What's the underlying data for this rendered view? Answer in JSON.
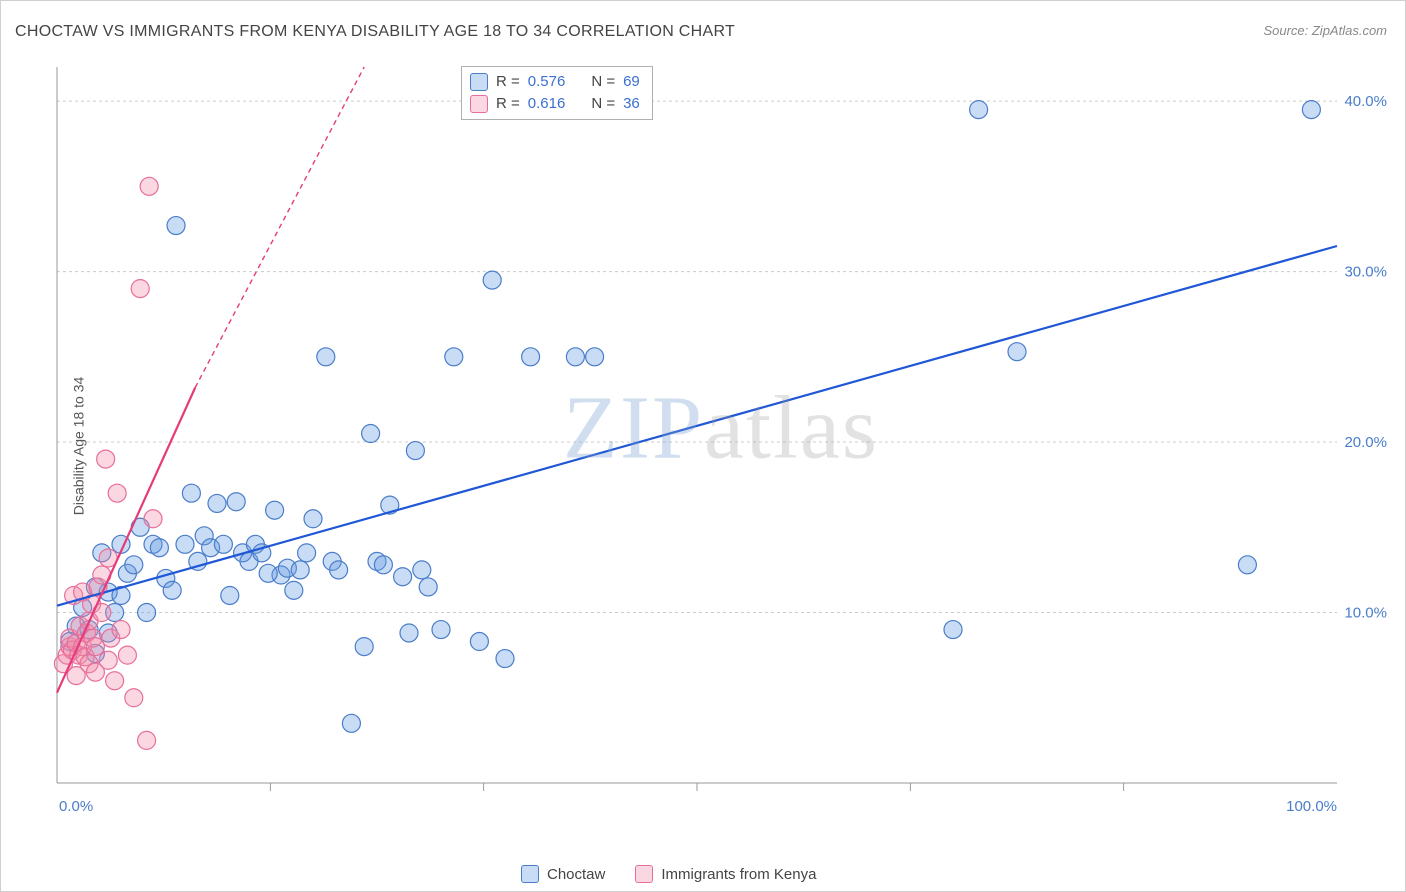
{
  "title": "CHOCTAW VS IMMIGRANTS FROM KENYA DISABILITY AGE 18 TO 34 CORRELATION CHART",
  "source": "Source: ZipAtlas.com",
  "y_axis_label": "Disability Age 18 to 34",
  "watermark": {
    "zip": "ZIP",
    "atlas": "atlas"
  },
  "chart": {
    "type": "scatter",
    "xlim": [
      0,
      100
    ],
    "ylim": [
      0,
      42
    ],
    "y_ticks": [
      10,
      20,
      30,
      40
    ],
    "y_tick_labels": [
      "10.0%",
      "20.0%",
      "30.0%",
      "40.0%"
    ],
    "x_end_labels": {
      "min": "0.0%",
      "max": "100.0%"
    },
    "x_minor_ticks": [
      16.67,
      33.33,
      50,
      66.67,
      83.33
    ],
    "background_color": "#ffffff",
    "grid_color": "#cccccc",
    "axis_color": "#999999",
    "series": [
      {
        "name": "Choctaw",
        "color_fill": "rgba(100,155,225,0.35)",
        "color_stroke": "#4a7dc9",
        "marker_radius": 9,
        "trend": {
          "x1": 0,
          "y1": 10.4,
          "x2": 100,
          "y2": 31.5,
          "stroke": "#1f57d6",
          "width": 2.2,
          "dash": "none"
        },
        "points": [
          [
            1,
            8.3
          ],
          [
            1.5,
            9.2
          ],
          [
            2,
            10.3
          ],
          [
            2.5,
            9.0
          ],
          [
            3,
            7.6
          ],
          [
            3,
            11.5
          ],
          [
            3.5,
            13.5
          ],
          [
            4,
            8.8
          ],
          [
            4,
            11.2
          ],
          [
            4.5,
            10.0
          ],
          [
            5,
            14.0
          ],
          [
            5,
            11.0
          ],
          [
            5.5,
            12.3
          ],
          [
            6,
            12.8
          ],
          [
            6.5,
            15.0
          ],
          [
            7,
            10.0
          ],
          [
            7.5,
            14.0
          ],
          [
            8,
            13.8
          ],
          [
            8.5,
            12.0
          ],
          [
            9,
            11.3
          ],
          [
            9.3,
            32.7
          ],
          [
            10,
            14.0
          ],
          [
            10.5,
            17.0
          ],
          [
            11,
            13.0
          ],
          [
            11.5,
            14.5
          ],
          [
            12,
            13.8
          ],
          [
            12.5,
            16.4
          ],
          [
            13,
            14.0
          ],
          [
            13.5,
            11.0
          ],
          [
            14,
            16.5
          ],
          [
            14.5,
            13.5
          ],
          [
            15,
            13.0
          ],
          [
            15.5,
            14.0
          ],
          [
            16,
            13.5
          ],
          [
            17,
            16.0
          ],
          [
            17.5,
            12.2
          ],
          [
            18,
            12.6
          ],
          [
            18.5,
            11.3
          ],
          [
            19,
            12.5
          ],
          [
            20,
            15.5
          ],
          [
            21,
            25.0
          ],
          [
            21.5,
            13.0
          ],
          [
            22,
            12.5
          ],
          [
            23,
            3.5
          ],
          [
            24,
            8.0
          ],
          [
            24.5,
            20.5
          ],
          [
            25,
            13.0
          ],
          [
            26,
            16.3
          ],
          [
            27,
            12.1
          ],
          [
            27.5,
            8.8
          ],
          [
            28,
            19.5
          ],
          [
            28.5,
            12.5
          ],
          [
            29,
            11.5
          ],
          [
            30,
            9.0
          ],
          [
            31,
            25.0
          ],
          [
            33,
            8.3
          ],
          [
            34,
            29.5
          ],
          [
            35,
            7.3
          ],
          [
            37,
            25.0
          ],
          [
            40.5,
            25.0
          ],
          [
            42,
            25.0
          ],
          [
            70,
            9.0
          ],
          [
            72,
            39.5
          ],
          [
            75,
            25.3
          ],
          [
            93,
            12.8
          ],
          [
            98,
            39.5
          ],
          [
            25.5,
            12.8
          ],
          [
            19.5,
            13.5
          ],
          [
            16.5,
            12.3
          ]
        ]
      },
      {
        "name": "Immigrants from Kenya",
        "color_fill": "rgba(240,140,170,0.35)",
        "color_stroke": "#e86e9a",
        "marker_radius": 9,
        "trend": {
          "x1": 0,
          "y1": 5.3,
          "x2": 10.8,
          "y2": 23.2,
          "stroke": "#e63b7a",
          "width": 2.2,
          "dash": "none",
          "ext_x2": 24,
          "ext_y2": 45,
          "ext_dash": "5,4"
        },
        "points": [
          [
            0.5,
            7.0
          ],
          [
            0.8,
            7.5
          ],
          [
            1,
            8.0
          ],
          [
            1,
            8.5
          ],
          [
            1.2,
            7.8
          ],
          [
            1.3,
            11.0
          ],
          [
            1.5,
            8.2
          ],
          [
            1.5,
            6.3
          ],
          [
            1.7,
            7.5
          ],
          [
            1.8,
            9.2
          ],
          [
            2,
            8.0
          ],
          [
            2,
            11.2
          ],
          [
            2.2,
            7.4
          ],
          [
            2.3,
            8.8
          ],
          [
            2.5,
            7.0
          ],
          [
            2.5,
            9.5
          ],
          [
            2.7,
            10.5
          ],
          [
            2.8,
            8.5
          ],
          [
            3,
            8.0
          ],
          [
            3,
            6.5
          ],
          [
            3.2,
            11.5
          ],
          [
            3.5,
            12.2
          ],
          [
            3.5,
            10.0
          ],
          [
            3.8,
            19.0
          ],
          [
            4,
            13.2
          ],
          [
            4.2,
            8.5
          ],
          [
            4.5,
            6.0
          ],
          [
            4.7,
            17.0
          ],
          [
            5,
            9.0
          ],
          [
            5.5,
            7.5
          ],
          [
            6,
            5.0
          ],
          [
            6.5,
            29.0
          ],
          [
            7.2,
            35.0
          ],
          [
            7.5,
            15.5
          ],
          [
            7,
            2.5
          ],
          [
            4,
            7.2
          ]
        ]
      }
    ]
  },
  "stats_legend": [
    {
      "swatch": "blue",
      "r_label": "R =",
      "r": "0.576",
      "n_label": "N =",
      "n": "69"
    },
    {
      "swatch": "pink",
      "r_label": "R =",
      "r": "0.616",
      "n_label": "N =",
      "n": "36"
    }
  ],
  "bottom_legend": [
    {
      "swatch": "blue",
      "label": "Choctaw"
    },
    {
      "swatch": "pink",
      "label": "Immigrants from Kenya"
    }
  ]
}
